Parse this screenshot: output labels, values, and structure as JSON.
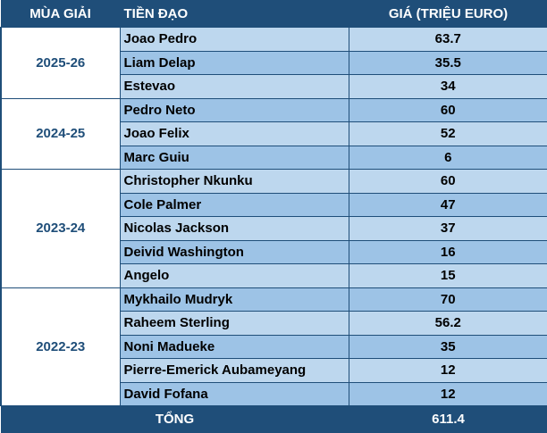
{
  "headers": {
    "season": "MÙA GIẢI",
    "player": "TIỀN ĐẠO",
    "price": "GIÁ (TRIỆU EURO)"
  },
  "groups": [
    {
      "season": "2025-26",
      "rows": [
        {
          "player": "Joao Pedro",
          "price": "63.7"
        },
        {
          "player": "Liam Delap",
          "price": "35.5"
        },
        {
          "player": "Estevao",
          "price": "34"
        }
      ]
    },
    {
      "season": "2024-25",
      "rows": [
        {
          "player": "Pedro Neto",
          "price": "60"
        },
        {
          "player": "Joao Felix",
          "price": "52"
        },
        {
          "player": "Marc Guiu",
          "price": "6"
        }
      ]
    },
    {
      "season": "2023-24",
      "rows": [
        {
          "player": "Christopher Nkunku",
          "price": "60"
        },
        {
          "player": "Cole Palmer",
          "price": "47"
        },
        {
          "player": "Nicolas Jackson",
          "price": "37"
        },
        {
          "player": "Deivid Washington",
          "price": "16"
        },
        {
          "player": "Angelo",
          "price": "15"
        }
      ]
    },
    {
      "season": "2022-23",
      "rows": [
        {
          "player": "Mykhailo Mudryk",
          "price": "70"
        },
        {
          "player": "Raheem Sterling",
          "price": "56.2"
        },
        {
          "player": "Noni Madueke",
          "price": "35"
        },
        {
          "player": "Pierre-Emerick Aubameyang",
          "price": "12"
        },
        {
          "player": "David Fofana",
          "price": "12"
        }
      ]
    }
  ],
  "total": {
    "label": "TỔNG",
    "value": "611.4"
  },
  "colors": {
    "header_bg": "#1f4e79",
    "row_light": "#bdd7ee",
    "row_dark": "#9dc3e6",
    "season_text": "#1f4e79"
  }
}
